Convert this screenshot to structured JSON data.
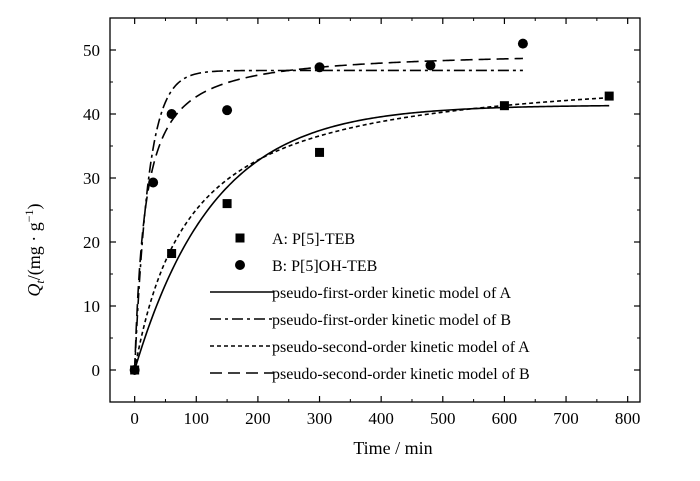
{
  "chart_data": {
    "type": "scatter",
    "xlabel": "Time / min",
    "ylabel": "Qt/(mg · g−1)",
    "ylabel_parts": {
      "q": "Q",
      "sub": "t",
      "unit_open": "/(mg · g",
      "sup": "−1",
      "unit_close": ")"
    },
    "xlim": [
      -40,
      820
    ],
    "ylim": [
      -5,
      55
    ],
    "xticks": [
      0,
      100,
      200,
      300,
      400,
      500,
      600,
      700,
      800
    ],
    "yticks": [
      0,
      10,
      20,
      30,
      40,
      50
    ],
    "grid": false,
    "legend_position": "center-right",
    "series": [
      {
        "name": "A: P[5]-TEB",
        "kind": "points",
        "marker": "square",
        "x": [
          0,
          60,
          150,
          300,
          600,
          770
        ],
        "y": [
          0,
          18.2,
          26.0,
          34.0,
          41.3,
          42.8
        ]
      },
      {
        "name": "B: P[5]OH-TEB",
        "kind": "points",
        "marker": "circle",
        "x": [
          0,
          30,
          60,
          150,
          300,
          480,
          630
        ],
        "y": [
          0,
          29.3,
          40.0,
          40.6,
          47.3,
          47.6,
          51.0
        ]
      },
      {
        "name": "pseudo-first-order kinetic model of A",
        "kind": "line",
        "dash": "solid",
        "model": "first",
        "qe": 41.4,
        "k": 0.0078,
        "x_range": [
          0,
          770
        ]
      },
      {
        "name": "pseudo-first-order kinetic model of B",
        "kind": "line",
        "dash": "dashdot",
        "model": "first",
        "qe": 46.8,
        "k": 0.045,
        "x_range": [
          0,
          630
        ]
      },
      {
        "name": "pseudo-second-order kinetic model of A",
        "kind": "line",
        "dash": "dotted",
        "model": "second",
        "qe": 47.5,
        "k": 0.000235,
        "x_range": [
          0,
          770
        ]
      },
      {
        "name": "pseudo-second-order kinetic model of B",
        "kind": "line",
        "dash": "dashed",
        "model": "second",
        "qe": 50.0,
        "k": 0.00117,
        "x_range": [
          0,
          630
        ]
      }
    ]
  }
}
